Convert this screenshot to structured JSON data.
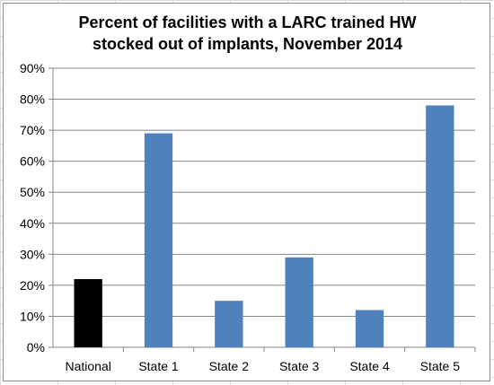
{
  "chart_data": {
    "type": "bar",
    "title_lines": [
      "Percent of facilities with a LARC trained HW",
      "stocked out of implants, November 2014"
    ],
    "categories": [
      "National",
      "State 1",
      "State 2",
      "State 3",
      "State 4",
      "State 5"
    ],
    "values": [
      22,
      69,
      15,
      29,
      12,
      78
    ],
    "bar_colors": [
      "#000000",
      "#4f81bd",
      "#4f81bd",
      "#4f81bd",
      "#4f81bd",
      "#4f81bd"
    ],
    "ylim": [
      0,
      90
    ],
    "ytick_step": 10,
    "ytick_suffix": "%",
    "grid": true,
    "legend": "none",
    "xlabel": "",
    "ylabel": ""
  }
}
